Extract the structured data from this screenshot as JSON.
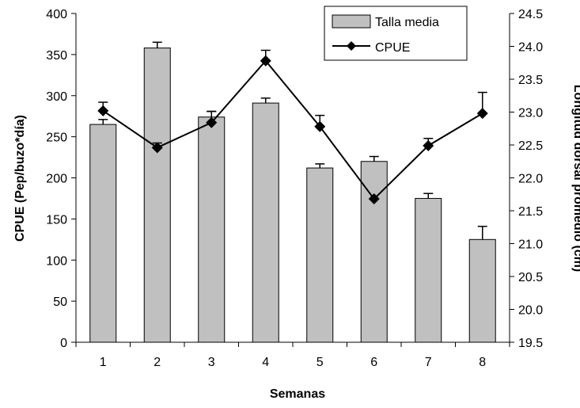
{
  "chart_data": {
    "type": "bar",
    "categories": [
      "1",
      "2",
      "3",
      "4",
      "5",
      "6",
      "7",
      "8"
    ],
    "xlabel": "Semanas",
    "ylabel_left": "CPUE (Pep/buzo*día)",
    "ylabel_right": "Longitud dorsal promedio (cm)",
    "ylim_left": [
      0,
      400
    ],
    "ylim_right": [
      19.5,
      24.5
    ],
    "yticks_left": [
      "0",
      "50",
      "100",
      "150",
      "200",
      "250",
      "300",
      "350",
      "400"
    ],
    "yticks_right": [
      "19.5",
      "20.0",
      "20.5",
      "21.0",
      "21.5",
      "22.0",
      "22.5",
      "23.0",
      "23.5",
      "24.0",
      "24.5"
    ],
    "legend_position": "top-right",
    "grid": false,
    "series": [
      {
        "name": "Talla media",
        "kind": "bar",
        "axis": "left",
        "color": "#c0c0c0",
        "values": [
          265,
          358,
          274,
          291,
          212,
          220,
          175,
          125
        ],
        "error_upper": [
          6,
          7,
          7,
          6,
          5,
          6,
          6,
          16
        ]
      },
      {
        "name": "CPUE",
        "kind": "line",
        "axis": "right",
        "color": "#000000",
        "marker": "diamond",
        "values": [
          23.02,
          22.46,
          22.84,
          23.78,
          22.78,
          21.68,
          22.49,
          22.98
        ],
        "error_upper": [
          0.13,
          0.07,
          0.17,
          0.16,
          0.17,
          0.0,
          0.11,
          0.32
        ]
      }
    ]
  }
}
